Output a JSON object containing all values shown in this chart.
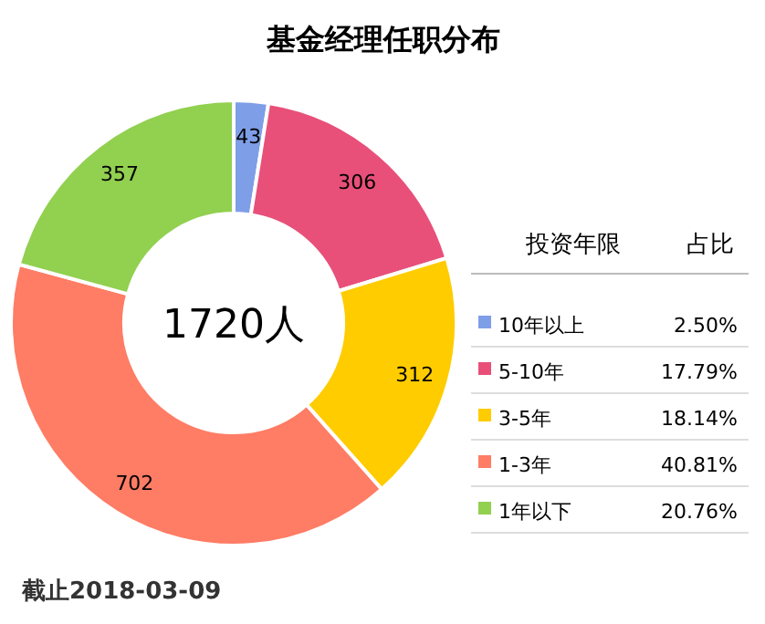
{
  "chart_data": {
    "type": "donut",
    "title": "基金经理任职分布",
    "categories": [
      "10年以上",
      "5-10年",
      "3-5年",
      "1-3年",
      "1年以下"
    ],
    "values": [
      43,
      306,
      312,
      702,
      357
    ],
    "colors": [
      "#7f9ee8",
      "#e8507a",
      "#ffcc00",
      "#ff7c65",
      "#92d050"
    ],
    "data_labels": true,
    "legend": "right",
    "legend_title": "投资年限",
    "annotations": [
      "1720人",
      "占比",
      "2.50%",
      "17.79%",
      "18.14%",
      "40.81%",
      "20.76%",
      "截止2018-03-09"
    ]
  }
}
